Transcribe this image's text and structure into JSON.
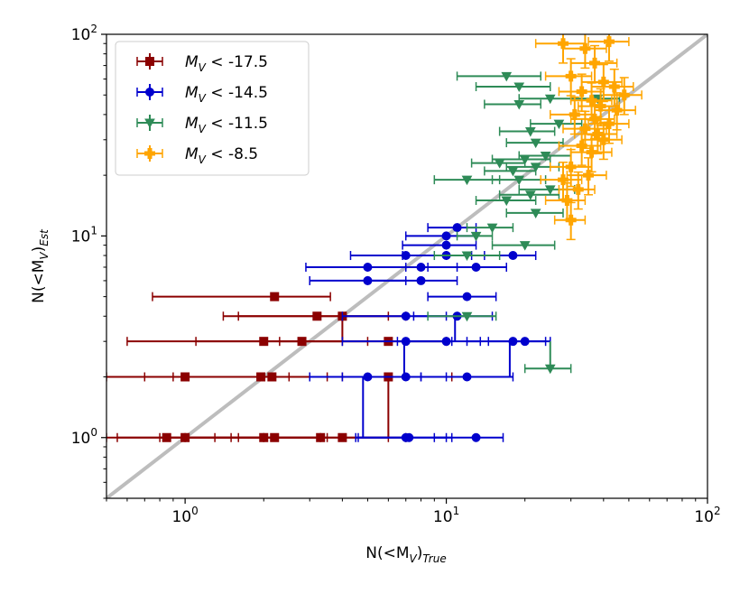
{
  "chart_data": {
    "type": "scatter",
    "xscale": "log",
    "yscale": "log",
    "xlim": [
      0.5,
      100
    ],
    "ylim": [
      0.5,
      100
    ],
    "xlabel_main": "N(<M",
    "xlabel_sub_v": "V",
    "xlabel_close": ")",
    "xlabel_sub": "True",
    "ylabel_main": "N(<M",
    "ylabel_sub_v": "V",
    "ylabel_close": ")",
    "ylabel_sub": "Est",
    "x_ticks": [
      {
        "value": 1,
        "base": "10",
        "exp": "0"
      },
      {
        "value": 10,
        "base": "10",
        "exp": "1"
      },
      {
        "value": 100,
        "base": "10",
        "exp": "2"
      }
    ],
    "y_ticks": [
      {
        "value": 1,
        "base": "10",
        "exp": "0"
      },
      {
        "value": 10,
        "base": "10",
        "exp": "1"
      },
      {
        "value": 100,
        "base": "10",
        "exp": "2"
      }
    ],
    "reference_line": {
      "label": "1:1",
      "color": "#bdbdbd"
    },
    "series": [
      {
        "name": "M_V < -17.5",
        "legend_prefix": "M",
        "legend_sub": "V",
        "legend_suffix": " < -17.5",
        "color": "#8b0000",
        "marker": "square",
        "points": [
          {
            "x": 2.2,
            "y": 5,
            "xlo": 0.75,
            "xhi": 3.6
          },
          {
            "x": 3.2,
            "y": 4,
            "xlo": 1.4,
            "xhi": 6.0
          },
          {
            "x": 4.0,
            "y": 4,
            "xlo": 1.6,
            "xhi": 7.0
          },
          {
            "x": 2.0,
            "y": 3,
            "xlo": 0.6,
            "xhi": 4.0
          },
          {
            "x": 2.8,
            "y": 3,
            "xlo": 1.1,
            "xhi": 5.0
          },
          {
            "x": 6.0,
            "y": 3,
            "xlo": 2.3,
            "xhi": 10.0
          },
          {
            "x": 1.0,
            "y": 2,
            "xlo": 0.5,
            "xhi": 2.0
          },
          {
            "x": 1.95,
            "y": 2,
            "xlo": 0.7,
            "xhi": 3.5
          },
          {
            "x": 2.15,
            "y": 2,
            "xlo": 0.9,
            "xhi": 4.0
          },
          {
            "x": 6.0,
            "y": 2,
            "xlo": 2.5,
            "xhi": 10.5
          },
          {
            "x": 0.85,
            "y": 1,
            "xlo": 0.55,
            "xhi": 1.5
          },
          {
            "x": 1.0,
            "y": 1,
            "xlo": 0.5,
            "xhi": 2.0
          },
          {
            "x": 2.0,
            "y": 1,
            "xlo": 0.8,
            "xhi": 3.3
          },
          {
            "x": 2.2,
            "y": 1,
            "xlo": 1.0,
            "xhi": 3.5
          },
          {
            "x": 3.3,
            "y": 1,
            "xlo": 1.3,
            "xhi": 6.0
          },
          {
            "x": 4.0,
            "y": 1,
            "xlo": 1.6,
            "xhi": 7.0
          }
        ],
        "connectors": [
          {
            "x": 6.0,
            "y1": 1,
            "y2": 2
          },
          {
            "x": 4.0,
            "y1": 3,
            "y2": 4
          }
        ]
      },
      {
        "name": "M_V < -14.5",
        "legend_prefix": "M",
        "legend_sub": "V",
        "legend_suffix": " < -14.5",
        "color": "#0000cd",
        "marker": "circle",
        "points": [
          {
            "x": 11.0,
            "y": 11,
            "xlo": 8.5,
            "xhi": 13.0
          },
          {
            "x": 10.0,
            "y": 10,
            "xlo": 7.0,
            "xhi": 13.0
          },
          {
            "x": 10.0,
            "y": 9,
            "xlo": 6.8,
            "xhi": 13.0
          },
          {
            "x": 7.0,
            "y": 8,
            "xlo": 4.3,
            "xhi": 10.0
          },
          {
            "x": 10.0,
            "y": 8,
            "xlo": 6.8,
            "xhi": 14.0
          },
          {
            "x": 18.0,
            "y": 8,
            "xlo": 12.5,
            "xhi": 22.0
          },
          {
            "x": 5.0,
            "y": 7,
            "xlo": 2.9,
            "xhi": 7.0
          },
          {
            "x": 8.0,
            "y": 7,
            "xlo": 5.0,
            "xhi": 11.0
          },
          {
            "x": 13.0,
            "y": 7,
            "xlo": 8.5,
            "xhi": 17.0
          },
          {
            "x": 5.0,
            "y": 6,
            "xlo": 3.0,
            "xhi": 7.0
          },
          {
            "x": 8.0,
            "y": 6,
            "xlo": 5.0,
            "xhi": 11.0
          },
          {
            "x": 12.0,
            "y": 5,
            "xlo": 8.5,
            "xhi": 15.5
          },
          {
            "x": 7.0,
            "y": 4,
            "xlo": 4.0,
            "xhi": 10.0
          },
          {
            "x": 11.0,
            "y": 4,
            "xlo": 7.5,
            "xhi": 15.0
          },
          {
            "x": 7.0,
            "y": 3,
            "xlo": 4.0,
            "xhi": 10.5
          },
          {
            "x": 10.0,
            "y": 3,
            "xlo": 6.5,
            "xhi": 13.5
          },
          {
            "x": 18.0,
            "y": 3,
            "xlo": 12.0,
            "xhi": 25.0
          },
          {
            "x": 20.0,
            "y": 3,
            "xlo": 14.5,
            "xhi": 24.0
          },
          {
            "x": 5.0,
            "y": 2,
            "xlo": 3.0,
            "xhi": 8.0
          },
          {
            "x": 7.0,
            "y": 2,
            "xlo": 4.0,
            "xhi": 10.0
          },
          {
            "x": 12.0,
            "y": 2,
            "xlo": 8.0,
            "xhi": 18.0
          },
          {
            "x": 7.0,
            "y": 1,
            "xlo": 4.5,
            "xhi": 10.0
          },
          {
            "x": 7.2,
            "y": 1,
            "xlo": 4.6,
            "xhi": 10.5
          },
          {
            "x": 13.0,
            "y": 1,
            "xlo": 9.0,
            "xhi": 16.5
          }
        ],
        "connectors": [
          {
            "x": 4.8,
            "y1": 1,
            "y2": 2
          },
          {
            "x": 6.9,
            "y1": 2,
            "y2": 3
          },
          {
            "x": 10.8,
            "y1": 3,
            "y2": 4
          },
          {
            "x": 17.5,
            "y1": 2,
            "y2": 3
          }
        ]
      },
      {
        "name": "M_V < -11.5",
        "legend_prefix": "M",
        "legend_sub": "V",
        "legend_suffix": " < -11.5",
        "color": "#2e8b57",
        "marker": "triangle-down",
        "points": [
          {
            "x": 25.0,
            "y": 2.2,
            "xlo": 20.0,
            "xhi": 30.0
          },
          {
            "x": 12.0,
            "y": 4,
            "xlo": 8.5,
            "xhi": 15.5
          },
          {
            "x": 12.0,
            "y": 8,
            "xlo": 9.0,
            "xhi": 16.0
          },
          {
            "x": 20.0,
            "y": 9,
            "xlo": 15.0,
            "xhi": 26.0
          },
          {
            "x": 15.0,
            "y": 11,
            "xlo": 12.0,
            "xhi": 18.0
          },
          {
            "x": 13.0,
            "y": 10,
            "xlo": 11.0,
            "xhi": 15.0
          },
          {
            "x": 22.0,
            "y": 13,
            "xlo": 17.0,
            "xhi": 28.0
          },
          {
            "x": 17.0,
            "y": 15,
            "xlo": 13.0,
            "xhi": 22.0
          },
          {
            "x": 21.0,
            "y": 16,
            "xlo": 16.0,
            "xhi": 27.0
          },
          {
            "x": 25.0,
            "y": 17,
            "xlo": 19.0,
            "xhi": 31.0
          },
          {
            "x": 19.0,
            "y": 19,
            "xlo": 15.0,
            "xhi": 24.0
          },
          {
            "x": 12.0,
            "y": 19,
            "xlo": 9.0,
            "xhi": 16.0
          },
          {
            "x": 18.0,
            "y": 21,
            "xlo": 14.0,
            "xhi": 22.0
          },
          {
            "x": 22.0,
            "y": 22,
            "xlo": 17.0,
            "xhi": 27.0
          },
          {
            "x": 16.0,
            "y": 23,
            "xlo": 12.5,
            "xhi": 20.0
          },
          {
            "x": 20.0,
            "y": 24,
            "xlo": 15.0,
            "xhi": 25.0
          },
          {
            "x": 24.0,
            "y": 25,
            "xlo": 19.0,
            "xhi": 30.0
          },
          {
            "x": 22.0,
            "y": 29,
            "xlo": 17.0,
            "xhi": 28.0
          },
          {
            "x": 21.0,
            "y": 33,
            "xlo": 16.0,
            "xhi": 26.0
          },
          {
            "x": 27.0,
            "y": 36,
            "xlo": 21.0,
            "xhi": 33.0
          },
          {
            "x": 19.0,
            "y": 45,
            "xlo": 14.0,
            "xhi": 23.0
          },
          {
            "x": 25.0,
            "y": 48,
            "xlo": 19.0,
            "xhi": 30.0
          },
          {
            "x": 38.0,
            "y": 48,
            "xlo": 30.0,
            "xhi": 46.0
          },
          {
            "x": 19.0,
            "y": 55,
            "xlo": 13.0,
            "xhi": 25.0
          },
          {
            "x": 17.0,
            "y": 62,
            "xlo": 11.0,
            "xhi": 23.0
          }
        ],
        "connectors": [
          {
            "x": 25.0,
            "y1": 2.2,
            "y2": 3
          }
        ]
      },
      {
        "name": "M_V < -8.5",
        "legend_prefix": "M",
        "legend_sub": "V",
        "legend_suffix": " < -8.5",
        "color": "#ffa500",
        "marker": "plus",
        "points": [
          {
            "x": 30.0,
            "y": 12,
            "xlo": 26.0,
            "xhi": 34.0
          },
          {
            "x": 29.0,
            "y": 15,
            "xlo": 24.0,
            "xhi": 34.0
          },
          {
            "x": 32.0,
            "y": 17,
            "xlo": 27.0,
            "xhi": 37.0
          },
          {
            "x": 28.0,
            "y": 19,
            "xlo": 23.0,
            "xhi": 33.0
          },
          {
            "x": 35.0,
            "y": 20,
            "xlo": 29.0,
            "xhi": 41.0
          },
          {
            "x": 30.0,
            "y": 22,
            "xlo": 25.0,
            "xhi": 36.0
          },
          {
            "x": 36.0,
            "y": 26,
            "xlo": 30.0,
            "xhi": 43.0
          },
          {
            "x": 33.0,
            "y": 28,
            "xlo": 27.0,
            "xhi": 39.0
          },
          {
            "x": 40.0,
            "y": 30,
            "xlo": 33.0,
            "xhi": 47.0
          },
          {
            "x": 38.0,
            "y": 32,
            "xlo": 31.0,
            "xhi": 45.0
          },
          {
            "x": 34.0,
            "y": 34,
            "xlo": 28.0,
            "xhi": 41.0
          },
          {
            "x": 42.0,
            "y": 36,
            "xlo": 35.0,
            "xhi": 50.0
          },
          {
            "x": 37.0,
            "y": 38,
            "xlo": 30.0,
            "xhi": 44.0
          },
          {
            "x": 31.0,
            "y": 40,
            "xlo": 25.0,
            "xhi": 37.0
          },
          {
            "x": 45.0,
            "y": 42,
            "xlo": 37.0,
            "xhi": 53.0
          },
          {
            "x": 39.0,
            "y": 44,
            "xlo": 32.0,
            "xhi": 46.0
          },
          {
            "x": 36.0,
            "y": 47,
            "xlo": 30.0,
            "xhi": 43.0
          },
          {
            "x": 48.0,
            "y": 50,
            "xlo": 40.0,
            "xhi": 56.0
          },
          {
            "x": 33.0,
            "y": 52,
            "xlo": 27.0,
            "xhi": 40.0
          },
          {
            "x": 44.0,
            "y": 55,
            "xlo": 36.0,
            "xhi": 52.0
          },
          {
            "x": 40.0,
            "y": 58,
            "xlo": 33.0,
            "xhi": 47.0
          },
          {
            "x": 30.0,
            "y": 62,
            "xlo": 24.0,
            "xhi": 36.0
          },
          {
            "x": 37.0,
            "y": 72,
            "xlo": 30.0,
            "xhi": 45.0
          },
          {
            "x": 34.0,
            "y": 85,
            "xlo": 28.0,
            "xhi": 41.0
          },
          {
            "x": 28.0,
            "y": 90,
            "xlo": 22.0,
            "xhi": 34.0
          },
          {
            "x": 42.0,
            "y": 92,
            "xlo": 35.0,
            "xhi": 50.0
          }
        ]
      }
    ],
    "legend_position": "top-left"
  }
}
